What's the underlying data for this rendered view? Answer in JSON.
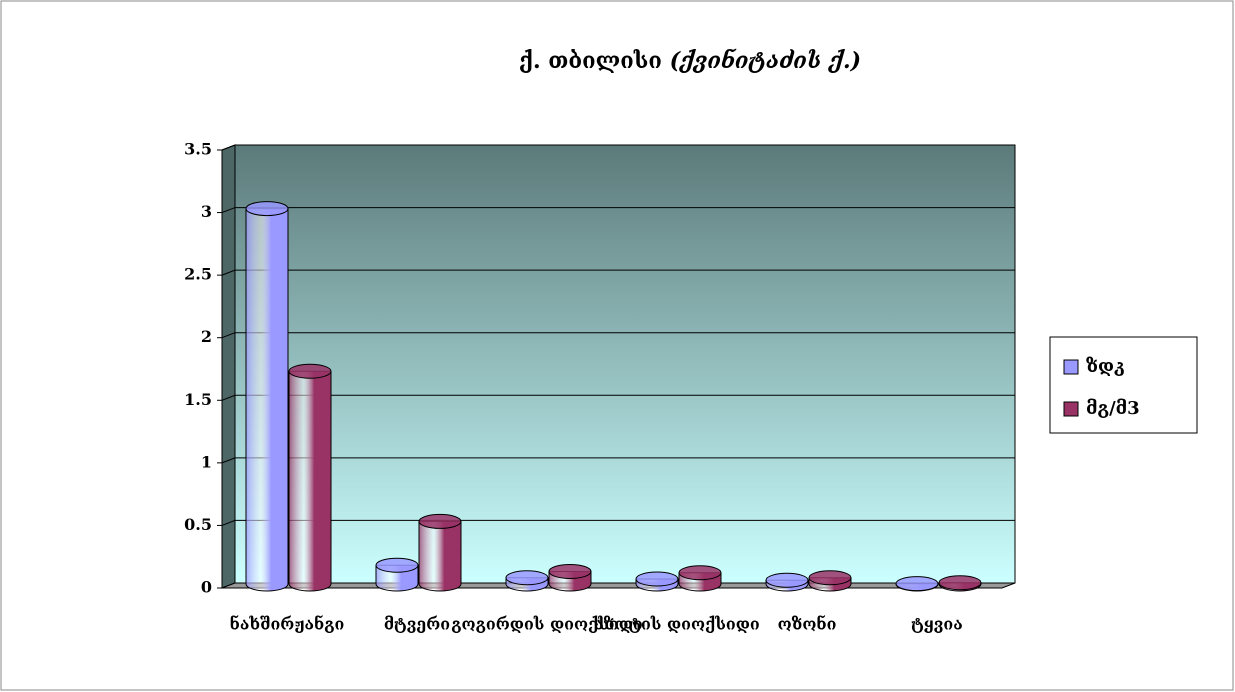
{
  "chart_data": {
    "type": "bar3d",
    "title": "ქ. თბილისი",
    "subtitle": "(ქვინიტაძის ქ.)",
    "categories": [
      "ნახშირჟანგი",
      "მტვერი",
      "გოგირდის დიოქსიდი",
      "აზოტის დიოქსიდი",
      "ოზონი",
      "ტყვია"
    ],
    "series": [
      {
        "name": "ზდკ",
        "color": "#9999ff",
        "values": [
          3,
          0.15,
          0.05,
          0.04,
          0.03,
          0.003
        ]
      },
      {
        "name": "მგ/მ3",
        "color": "#993366",
        "values": [
          1.7,
          0.5,
          0.1,
          0.09,
          0.05,
          0.01
        ]
      }
    ],
    "ylim": [
      0,
      3.5
    ],
    "yticks": [
      0,
      0.5,
      1,
      1.5,
      2,
      2.5,
      3,
      3.5
    ],
    "grid": true,
    "legend": "right"
  }
}
